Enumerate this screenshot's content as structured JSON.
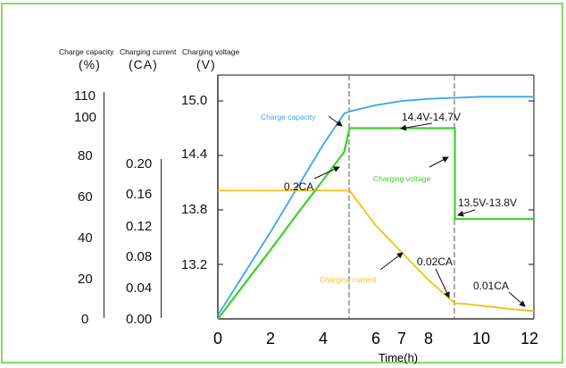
{
  "headers": {
    "capacity_title": "Charge  capacity",
    "current_title": "Charging current",
    "voltage_title": "Charging voltage",
    "capacity_unit": "(%)",
    "current_unit": "(CA)",
    "voltage_unit": "(V)"
  },
  "chart_data": {
    "type": "line",
    "xlabel": "Time(h)",
    "xlim": [
      0,
      12
    ],
    "x_ticks": [
      "0",
      "2",
      "4",
      "6",
      "7",
      "8",
      "10",
      "12"
    ],
    "axes": {
      "capacity": {
        "label": "Charge  capacity",
        "unit": "(%)",
        "ticks": [
          "0",
          "20",
          "40",
          "60",
          "80",
          "100",
          "110"
        ],
        "range": [
          0,
          110
        ]
      },
      "current": {
        "label": "Charging current",
        "unit": "(CA)",
        "ticks": [
          "0.00",
          "0.04",
          "0.08",
          "0.12",
          "0.16",
          "0.20"
        ],
        "range": [
          0,
          0.2
        ]
      },
      "voltage": {
        "label": "Charging voltage",
        "unit": "(V)",
        "ticks": [
          "13.2",
          "13.8",
          "14.4",
          "15.0"
        ],
        "range": [
          12.6,
          15.0
        ]
      }
    },
    "phase_markers_x": [
      5,
      9
    ],
    "series": [
      {
        "name": "Charge capacity",
        "axis": "capacity",
        "color": "#3aa6e8",
        "points": [
          [
            0,
            0
          ],
          [
            1,
            20
          ],
          [
            2,
            40
          ],
          [
            3,
            61
          ],
          [
            4,
            82
          ],
          [
            4.8,
            97
          ],
          [
            5,
            98
          ],
          [
            6,
            101
          ],
          [
            7,
            103
          ],
          [
            8,
            104
          ],
          [
            9,
            104.5
          ],
          [
            10,
            105
          ],
          [
            11,
            105
          ],
          [
            12,
            105
          ]
        ]
      },
      {
        "name": "Charging current",
        "axis": "current",
        "color": "#f5bf10",
        "points": [
          [
            0,
            0.165
          ],
          [
            4,
            0.165
          ],
          [
            5,
            0.165
          ],
          [
            6,
            0.12
          ],
          [
            7,
            0.085
          ],
          [
            8,
            0.05
          ],
          [
            9,
            0.02
          ],
          [
            9.5,
            0.019
          ],
          [
            10,
            0.017
          ],
          [
            11,
            0.013
          ],
          [
            12,
            0.01
          ]
        ]
      },
      {
        "name": "Charging voltage",
        "axis": "voltage",
        "color": "#3ecf2e",
        "points": [
          [
            0,
            12.6
          ],
          [
            1,
            12.98
          ],
          [
            2,
            13.36
          ],
          [
            3,
            13.75
          ],
          [
            4,
            14.13
          ],
          [
            4.8,
            14.44
          ],
          [
            5,
            14.7
          ],
          [
            9,
            14.7
          ],
          [
            9,
            13.7
          ],
          [
            12,
            13.7
          ]
        ]
      }
    ],
    "annotations": {
      "capacity_label": "Charge capacity",
      "voltage_label": "Charging voltage",
      "current_label": "Charging current",
      "v_cv": "14.4V-14.7V",
      "v_float": "13.5V-13.8V",
      "i_02": "0.2CA",
      "i_002": "0.02CA",
      "i_001": "0.01CA"
    },
    "colors": {
      "capacity": "#3aa6e8",
      "current": "#f5bf10",
      "voltage": "#3ecf2e",
      "frame": "#8cd86a"
    }
  }
}
